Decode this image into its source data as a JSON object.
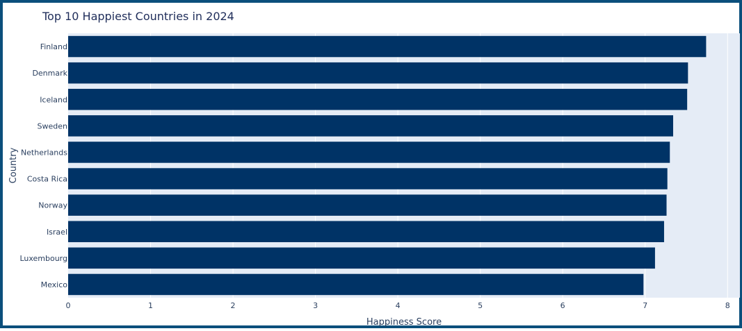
{
  "chart_data": {
    "type": "bar",
    "orientation": "horizontal",
    "title": "Top 10 Happiest Countries in 2024",
    "xlabel": "Happiness Score",
    "ylabel": "Country",
    "xlim": [
      0,
      8.15
    ],
    "xticks": [
      "0",
      "1",
      "2",
      "3",
      "4",
      "5",
      "6",
      "7",
      "8"
    ],
    "categories": [
      "Finland",
      "Denmark",
      "Iceland",
      "Sweden",
      "Netherlands",
      "Costa Rica",
      "Norway",
      "Israel",
      "Luxembourg",
      "Mexico"
    ],
    "values": [
      7.74,
      7.52,
      7.51,
      7.34,
      7.3,
      7.27,
      7.26,
      7.23,
      7.12,
      6.98
    ],
    "grid": true,
    "colors": {
      "bar": "#003366",
      "plot_background": "#e5ecf6",
      "grid": "#ffffff",
      "frame": "#0b4f7c"
    }
  }
}
